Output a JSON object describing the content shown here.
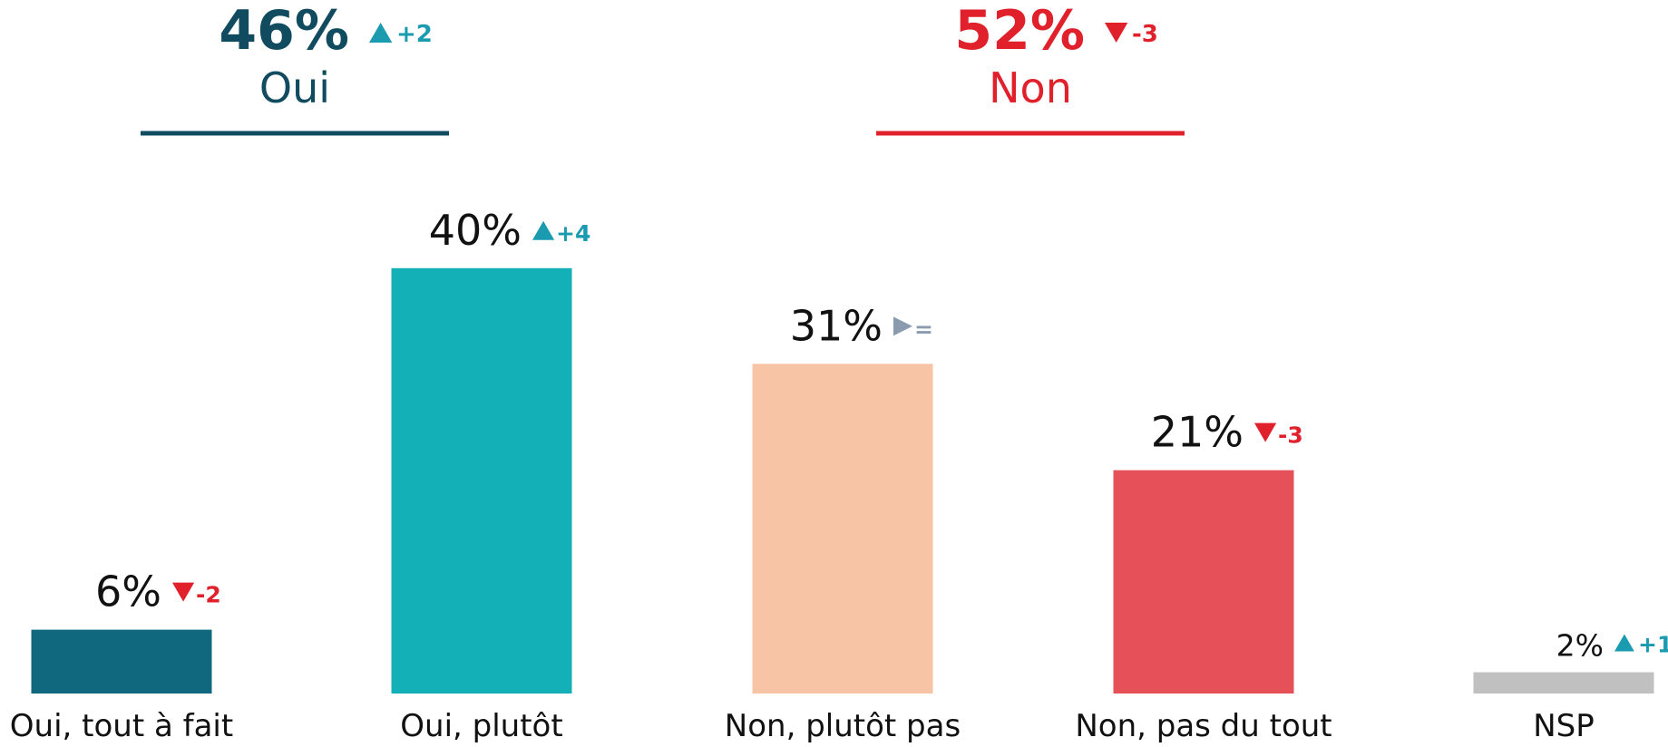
{
  "chart_data": {
    "type": "bar",
    "categories": [
      "Oui, tout à fait",
      "Oui, plutôt",
      "Non, plutôt pas",
      "Non, pas du tout",
      "NSP"
    ],
    "values": [
      6,
      40,
      31,
      21,
      2
    ],
    "value_labels": [
      "6%",
      "40%",
      "31%",
      "21%",
      "2%"
    ],
    "changes": [
      "-2",
      "+4",
      "=",
      "-3",
      "+1"
    ],
    "colors": [
      "#10687e",
      "#14b0b8",
      "#f7c4a5",
      "#e65058",
      "#c0c0c0"
    ],
    "groups": [
      {
        "label": "Oui",
        "value": 46,
        "value_label": "46%",
        "change": "+2",
        "color": "#114b5f"
      },
      {
        "label": "Non",
        "value": 52,
        "value_label": "52%",
        "change": "-3",
        "color": "#e0202a"
      }
    ]
  }
}
